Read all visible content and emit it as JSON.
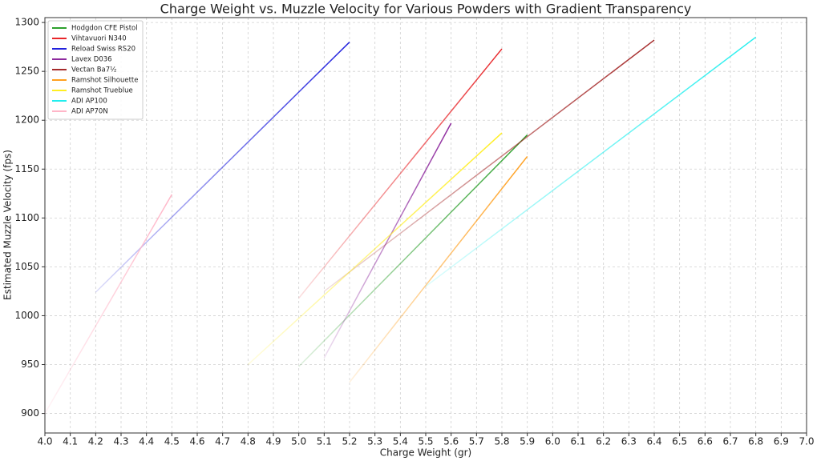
{
  "chart_data": {
    "type": "line",
    "title": "Charge Weight vs. Muzzle Velocity for Various Powders with Gradient Transparency",
    "x_label": "Charge Weight (gr)",
    "y_label": "Estimated Muzzle Velocity (fps)",
    "xlim": [
      4.0,
      7.0
    ],
    "ylim": [
      880,
      1305
    ],
    "xticks": [
      {
        "value": 4,
        "label": "4.0"
      },
      4.1,
      4.2,
      4.3,
      4.4,
      4.5,
      4.6,
      4.7,
      4.8,
      4.9,
      {
        "value": 5,
        "label": "5.0"
      },
      5.1,
      5.2,
      5.3,
      5.4,
      5.5,
      5.6,
      5.7,
      5.8,
      5.9,
      {
        "value": 6,
        "label": "6.0"
      },
      6.1,
      6.2,
      6.3,
      6.4,
      6.5,
      6.6,
      6.7,
      6.8,
      6.9,
      {
        "value": 7,
        "label": "7.0"
      }
    ],
    "yticks": [
      900,
      950,
      1000,
      1050,
      1100,
      1150,
      1200,
      1250,
      1300
    ],
    "grid": true,
    "legend": "upper left",
    "series": [
      {
        "name": "Hodgdon CFE Pistol",
        "color": "#2ca02c",
        "x": [
          5.0,
          5.9
        ],
        "values": [
          948,
          1185
        ]
      },
      {
        "name": "Vihtavuori N340",
        "color": "#e8262a",
        "x": [
          5.0,
          5.8
        ],
        "values": [
          1018,
          1273
        ]
      },
      {
        "name": "Reload Swiss RS20",
        "color": "#2222dd",
        "x": [
          4.2,
          5.2
        ],
        "values": [
          1024,
          1280
        ]
      },
      {
        "name": "Lavex D036",
        "color": "#8e2a9e",
        "x": [
          5.1,
          5.6
        ],
        "values": [
          957,
          1197
        ]
      },
      {
        "name": "Vectan Ba7½",
        "color": "#a52a2a",
        "x": [
          5.1,
          6.4
        ],
        "values": [
          1025,
          1282
        ]
      },
      {
        "name": "Ramshot Silhouette",
        "color": "#ffa020",
        "x": [
          5.2,
          5.9
        ],
        "values": [
          932,
          1163
        ]
      },
      {
        "name": "Ramshot Trueblue",
        "color": "#ffee22",
        "x": [
          4.8,
          5.8
        ],
        "values": [
          950,
          1187
        ]
      },
      {
        "name": "ADI AP100",
        "color": "#22eeee",
        "x": [
          5.5,
          6.8
        ],
        "values": [
          1030,
          1285
        ]
      },
      {
        "name": "ADI AP70N",
        "color": "#ffb6c8",
        "x": [
          4.0,
          4.5
        ],
        "values": [
          900,
          1124
        ]
      }
    ]
  }
}
